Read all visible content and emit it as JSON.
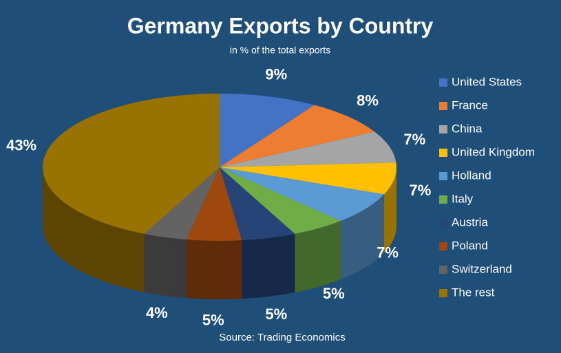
{
  "chart_data": {
    "type": "pie",
    "title": "Germany Exports by Country",
    "subtitle": "in % of the total exports",
    "source": "Source: Trading Economics",
    "categories": [
      "United States",
      "France",
      "China",
      "United Kingdom",
      "Holland",
      "Italy",
      "Austria",
      "Poland",
      "Switzerland",
      "The rest"
    ],
    "values": [
      9,
      8,
      7,
      7,
      7,
      5,
      5,
      5,
      4,
      43
    ],
    "value_labels": [
      "9%",
      "8%",
      "7%",
      "7%",
      "7%",
      "5%",
      "5%",
      "5%",
      "4%",
      "43%"
    ],
    "colors": [
      "#4472c4",
      "#ed7d31",
      "#a5a5a5",
      "#ffc000",
      "#5b9bd5",
      "#70ad47",
      "#264478",
      "#9e480e",
      "#636363",
      "#997300"
    ],
    "legend": "right"
  }
}
